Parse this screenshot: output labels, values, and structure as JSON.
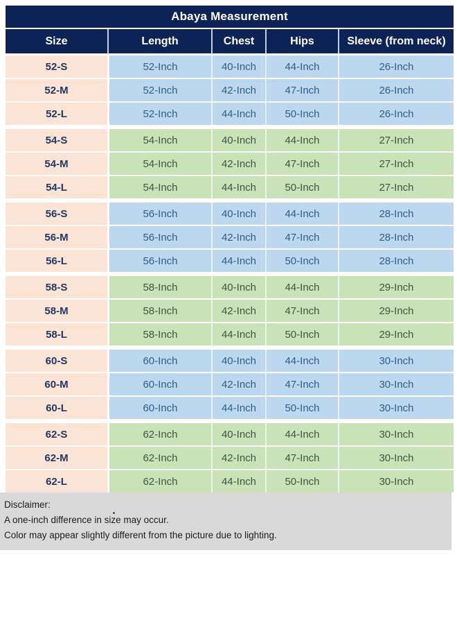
{
  "chart_data": {
    "type": "table",
    "title": "Abaya Measurement",
    "columns": [
      "Size",
      "Length",
      "Chest",
      "Hips",
      "Sleeve (from neck)"
    ],
    "rows": [
      [
        "52-S",
        "52-Inch",
        "40-Inch",
        "44-Inch",
        "26-Inch"
      ],
      [
        "52-M",
        "52-Inch",
        "42-Inch",
        "47-Inch",
        "26-Inch"
      ],
      [
        "52-L",
        "52-Inch",
        "44-Inch",
        "50-Inch",
        "26-Inch"
      ],
      [
        "54-S",
        "54-Inch",
        "40-Inch",
        "44-Inch",
        "27-Inch"
      ],
      [
        "54-M",
        "54-Inch",
        "42-Inch",
        "47-Inch",
        "27-Inch"
      ],
      [
        "54-L",
        "54-Inch",
        "44-Inch",
        "50-Inch",
        "27-Inch"
      ],
      [
        "56-S",
        "56-Inch",
        "40-Inch",
        "44-Inch",
        "28-Inch"
      ],
      [
        "56-M",
        "56-Inch",
        "42-Inch",
        "47-Inch",
        "28-Inch"
      ],
      [
        "56-L",
        "56-Inch",
        "44-Inch",
        "50-Inch",
        "28-Inch"
      ],
      [
        "58-S",
        "58-Inch",
        "40-Inch",
        "44-Inch",
        "29-Inch"
      ],
      [
        "58-M",
        "58-Inch",
        "42-Inch",
        "47-Inch",
        "29-Inch"
      ],
      [
        "58-L",
        "58-Inch",
        "44-Inch",
        "50-Inch",
        "29-Inch"
      ],
      [
        "60-S",
        "60-Inch",
        "40-Inch",
        "44-Inch",
        "30-Inch"
      ],
      [
        "60-M",
        "60-Inch",
        "42-Inch",
        "47-Inch",
        "30-Inch"
      ],
      [
        "60-L",
        "60-Inch",
        "44-Inch",
        "50-Inch",
        "30-Inch"
      ],
      [
        "62-S",
        "62-Inch",
        "40-Inch",
        "44-Inch",
        "30-Inch"
      ],
      [
        "62-M",
        "62-Inch",
        "42-Inch",
        "47-Inch",
        "30-Inch"
      ],
      [
        "62-L",
        "62-Inch",
        "44-Inch",
        "50-Inch",
        "30-Inch"
      ]
    ]
  },
  "disclaimer": {
    "heading": "Disclaimer:",
    "line1": "A one-inch difference in size may occur.",
    "line2": "Color may appear slightly different from the picture due to lighting."
  },
  "colors": {
    "header_navy": "#0e2355",
    "header_text": "#ffffff",
    "size_col_peach": "#fbe3d5",
    "size_text_navy": "#1f3864",
    "row_blue": "#bdd7ee",
    "row_blue_text": "#2d5e8d",
    "row_green": "#c9e2b7",
    "row_green_text": "#3c5743",
    "disclaimer_gray": "#d9d9d9",
    "disclaimer_text": "#1c1c1c"
  }
}
